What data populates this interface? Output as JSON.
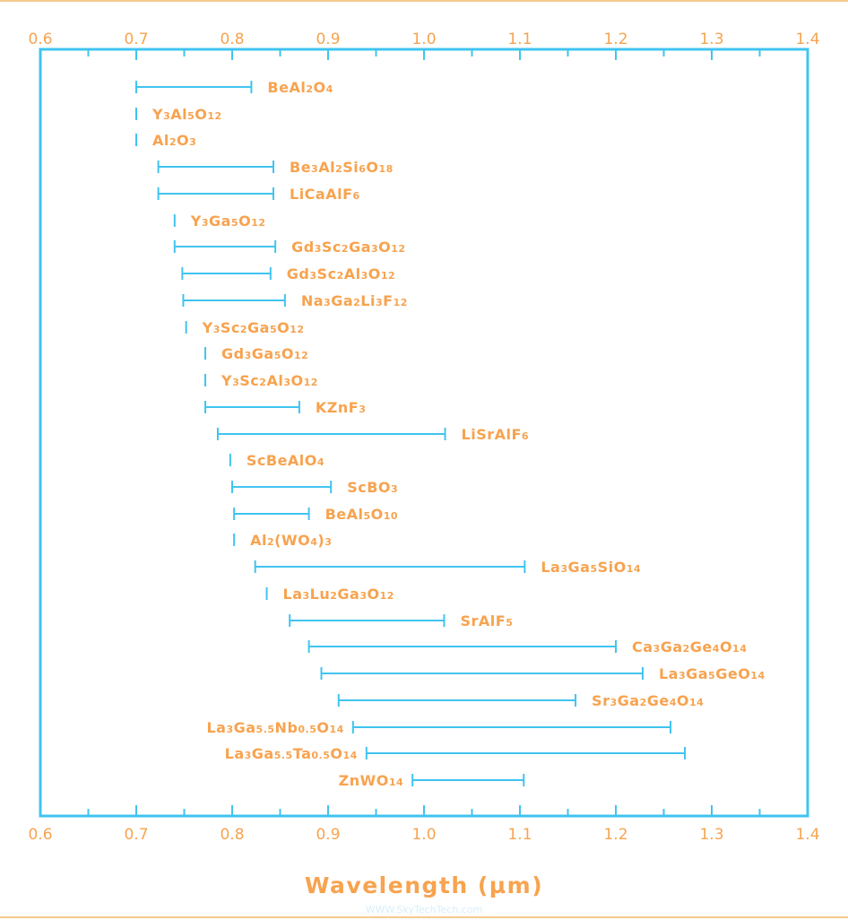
{
  "chart_data": {
    "type": "bar",
    "subtype": "range",
    "xlabel": "Wavelength (µm)",
    "xlim": [
      0.6,
      1.4
    ],
    "x_ticks": [
      "0.6",
      "0.7",
      "0.8",
      "0.9",
      "1.0",
      "1.1",
      "1.2",
      "1.3",
      "1.4"
    ],
    "x_axis_top_and_bottom": true,
    "grid": false,
    "colors": {
      "axis": "#40c4f0",
      "label": "#f7a34f",
      "range": "#40c4f0"
    },
    "items": [
      {
        "name": "BeAl2O4",
        "start": 0.7,
        "end": 0.82
      },
      {
        "name": "Y3Al5O12",
        "start": 0.7,
        "end": 0.7
      },
      {
        "name": "Al2O3",
        "start": 0.7,
        "end": 0.7
      },
      {
        "name": "Be3Al2Si6O18",
        "start": 0.723,
        "end": 0.843
      },
      {
        "name": "LiCaAlF6",
        "start": 0.723,
        "end": 0.843
      },
      {
        "name": "Y3Ga5O12",
        "start": 0.74,
        "end": 0.74
      },
      {
        "name": "Gd3Sc2Ga3O12",
        "start": 0.74,
        "end": 0.845
      },
      {
        "name": "Gd3Sc2Al3O12",
        "start": 0.748,
        "end": 0.84
      },
      {
        "name": "Na3Ga2Li3F12",
        "start": 0.749,
        "end": 0.855
      },
      {
        "name": "Y3Sc2Ga5O12",
        "start": 0.752,
        "end": 0.752
      },
      {
        "name": "Gd3Ga5O12",
        "start": 0.772,
        "end": 0.772
      },
      {
        "name": "Y3Sc2Al3O12",
        "start": 0.772,
        "end": 0.772
      },
      {
        "name": "KZnF3",
        "start": 0.772,
        "end": 0.87
      },
      {
        "name": "LiSrAlF6",
        "start": 0.785,
        "end": 1.022
      },
      {
        "name": "ScBeAlO4",
        "start": 0.798,
        "end": 0.798
      },
      {
        "name": "ScBO3",
        "start": 0.8,
        "end": 0.903
      },
      {
        "name": "BeAl5O10",
        "start": 0.802,
        "end": 0.88
      },
      {
        "name": "Al2(WO4)3",
        "start": 0.802,
        "end": 0.802
      },
      {
        "name": "La3Ga5SiO14",
        "start": 0.824,
        "end": 1.105
      },
      {
        "name": "La3Lu2Ga3O12",
        "start": 0.836,
        "end": 0.836
      },
      {
        "name": "SrAlF5",
        "start": 0.86,
        "end": 1.021
      },
      {
        "name": "Ca3Ga2Ge4O14",
        "start": 0.88,
        "end": 1.2
      },
      {
        "name": "La3Ga5GeO14",
        "start": 0.893,
        "end": 1.228
      },
      {
        "name": "Sr3Ga2Ge4O14",
        "start": 0.911,
        "end": 1.158
      },
      {
        "name": "La3Ga5.5Nb0.5O14",
        "start": 0.926,
        "end": 1.257,
        "label_side": "left"
      },
      {
        "name": "La3Ga5.5Ta0.5O14",
        "start": 0.94,
        "end": 1.272,
        "label_side": "left"
      },
      {
        "name": "ZnWO14",
        "start": 0.988,
        "end": 1.104,
        "label_side": "left"
      }
    ]
  },
  "watermark": "WWW.SkyTechTech.com"
}
